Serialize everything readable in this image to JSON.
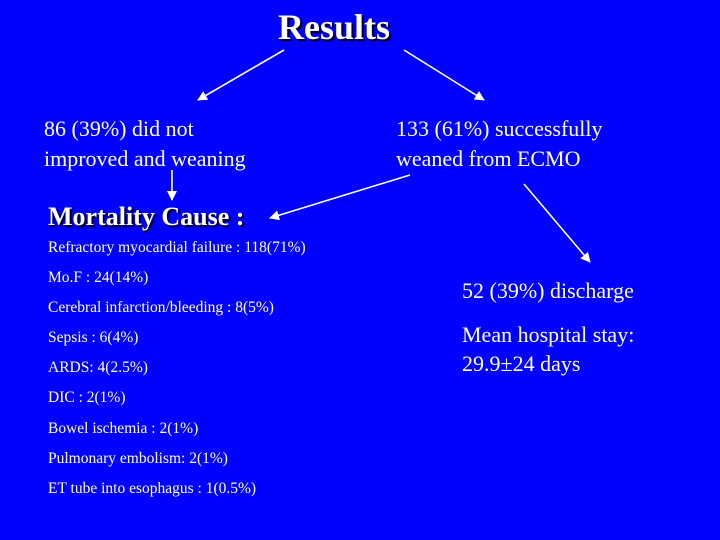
{
  "title": "Results",
  "left_box": {
    "line1": "86 (39%) did not",
    "line2": "improved and weaning"
  },
  "right_box": {
    "line1": "133 (61%) successfully",
    "line2": "weaned from ECMO"
  },
  "mortality_title": "Mortality Cause :",
  "causes": [
    "Refractory myocardial failure : 118(71%)",
    "Mo.F : 24(14%)",
    "Cerebral infarction/bleeding : 8(5%)",
    "Sepsis : 6(4%)",
    "ARDS: 4(2.5%)",
    "DIC : 2(1%)",
    "Bowel ischemia : 2(1%)",
    "Pulmonary embolism: 2(1%)",
    "ET tube into esophagus : 1(0.5%)"
  ],
  "discharge": "52 (39%) discharge",
  "stay": {
    "line1": "Mean hospital stay:",
    "line2": "29.9±24 days"
  },
  "colors": {
    "background": "#0000ff",
    "text": "#ffffff",
    "arrow": "#ffffff"
  }
}
